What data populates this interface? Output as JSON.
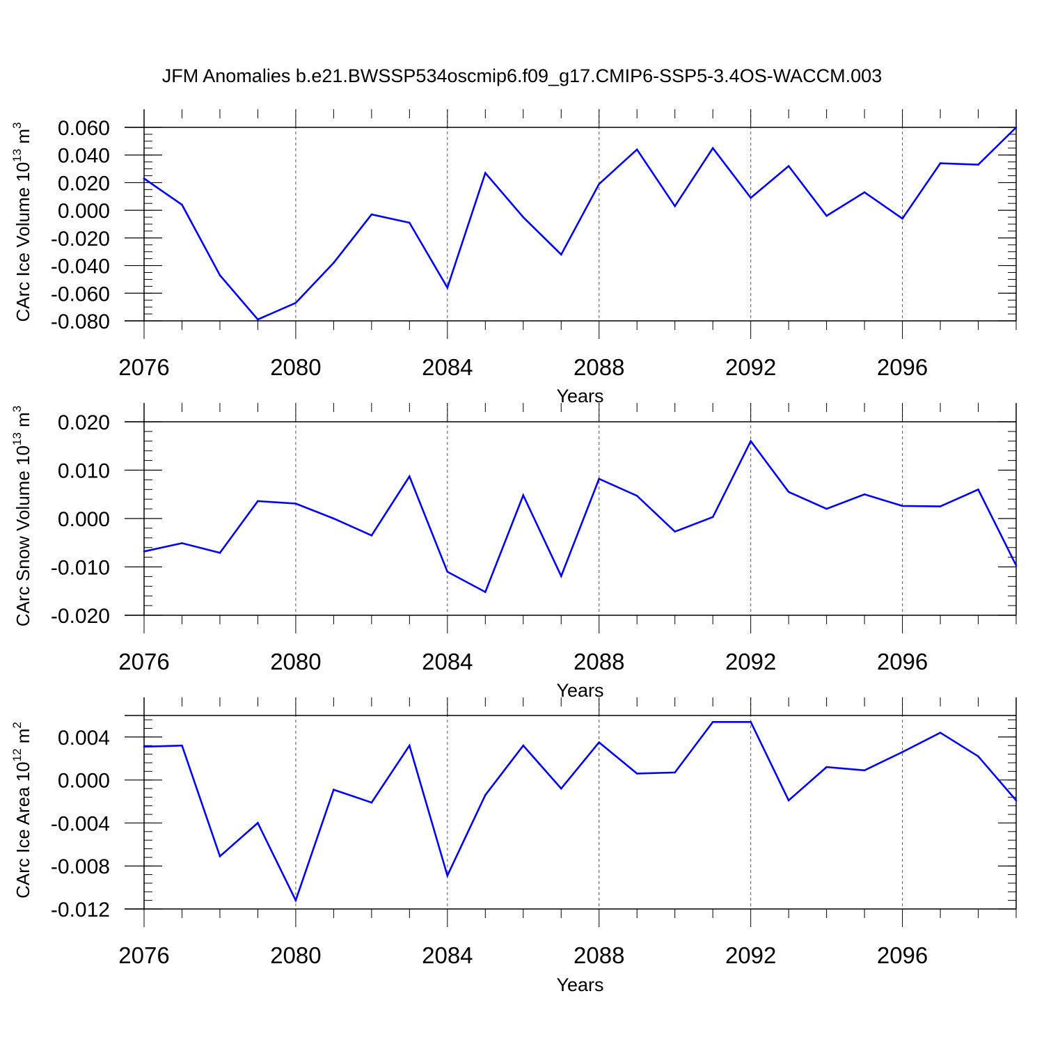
{
  "title": "JFM Anomalies b.e21.BWSSP534oscmip6.f09_g17.CMIP6-SSP5-3.4OS-WACCM.003",
  "colors": {
    "line": "#0000ff",
    "axis": "#000000",
    "grid": "#555555"
  },
  "chart_data": [
    {
      "type": "line",
      "ylabel_main": "CArc Ice Volume 10",
      "ylabel_exp": "13",
      "ylabel_unit": " m",
      "ylabel_unit_exp": "3",
      "xlabel": "Years",
      "x_tick_labels": [
        "2076",
        "2080",
        "2084",
        "2088",
        "2092",
        "2096"
      ],
      "y_tick_labels": [
        "0.060",
        "0.040",
        "0.020",
        "0.000",
        "-0.020",
        "-0.040",
        "-0.060",
        "-0.080"
      ],
      "ylim": [
        -0.08,
        0.06
      ],
      "xlim": [
        2076,
        2099
      ],
      "grid": "vertical dashed at major x ticks",
      "x": [
        2076,
        2077,
        2078,
        2079,
        2080,
        2081,
        2082,
        2083,
        2084,
        2085,
        2086,
        2087,
        2088,
        2089,
        2090,
        2091,
        2092,
        2093,
        2094,
        2095,
        2096,
        2097,
        2098,
        2099
      ],
      "values": [
        0.023,
        0.004,
        -0.047,
        -0.079,
        -0.067,
        -0.038,
        -0.003,
        -0.009,
        -0.056,
        0.027,
        -0.005,
        -0.032,
        0.019,
        0.044,
        0.003,
        0.045,
        0.009,
        0.032,
        -0.004,
        0.013,
        -0.006,
        0.034,
        0.033,
        0.06
      ]
    },
    {
      "type": "line",
      "ylabel_main": "CArc Snow Volume 10",
      "ylabel_exp": "13",
      "ylabel_unit": " m",
      "ylabel_unit_exp": "3",
      "xlabel": "Years",
      "x_tick_labels": [
        "2076",
        "2080",
        "2084",
        "2088",
        "2092",
        "2096"
      ],
      "y_tick_labels": [
        "0.020",
        "0.010",
        "0.000",
        "-0.010",
        "-0.020"
      ],
      "ylim": [
        -0.02,
        0.02
      ],
      "xlim": [
        2076,
        2099
      ],
      "grid": "vertical dashed at major x ticks",
      "x": [
        2076,
        2077,
        2078,
        2079,
        2080,
        2081,
        2082,
        2083,
        2084,
        2085,
        2086,
        2087,
        2088,
        2089,
        2090,
        2091,
        2092,
        2093,
        2094,
        2095,
        2096,
        2097,
        2098,
        2099
      ],
      "values": [
        -0.0068,
        -0.0051,
        -0.0071,
        0.0036,
        0.0031,
        0.0,
        -0.0035,
        0.0087,
        -0.011,
        -0.0152,
        0.0048,
        -0.0119,
        0.0082,
        0.0047,
        -0.0027,
        0.0003,
        0.016,
        0.0055,
        0.002,
        0.005,
        0.0026,
        0.0025,
        0.006,
        -0.0097
      ]
    },
    {
      "type": "line",
      "ylabel_main": "CArc Ice Area 10",
      "ylabel_exp": "12",
      "ylabel_unit": " m",
      "ylabel_unit_exp": "2",
      "xlabel": "Years",
      "x_tick_labels": [
        "2076",
        "2080",
        "2084",
        "2088",
        "2092",
        "2096"
      ],
      "y_tick_labels": [
        "0.004",
        "0.000",
        "-0.004",
        "-0.008",
        "-0.012"
      ],
      "ylim": [
        -0.012,
        0.006
      ],
      "xlim": [
        2076,
        2099
      ],
      "grid": "vertical dashed at major x ticks",
      "x": [
        2076,
        2077,
        2078,
        2079,
        2080,
        2081,
        2082,
        2083,
        2084,
        2085,
        2086,
        2087,
        2088,
        2089,
        2090,
        2091,
        2092,
        2093,
        2094,
        2095,
        2096,
        2097,
        2098,
        2099
      ],
      "values": [
        0.0031,
        0.0032,
        -0.0071,
        -0.004,
        -0.0112,
        -0.0009,
        -0.0021,
        0.0032,
        -0.0089,
        -0.0014,
        0.0032,
        -0.0008,
        0.0035,
        0.0006,
        0.0007,
        0.0054,
        0.0054,
        -0.0019,
        0.0012,
        0.0009,
        0.0026,
        0.0044,
        0.0022,
        -0.0019
      ]
    }
  ]
}
